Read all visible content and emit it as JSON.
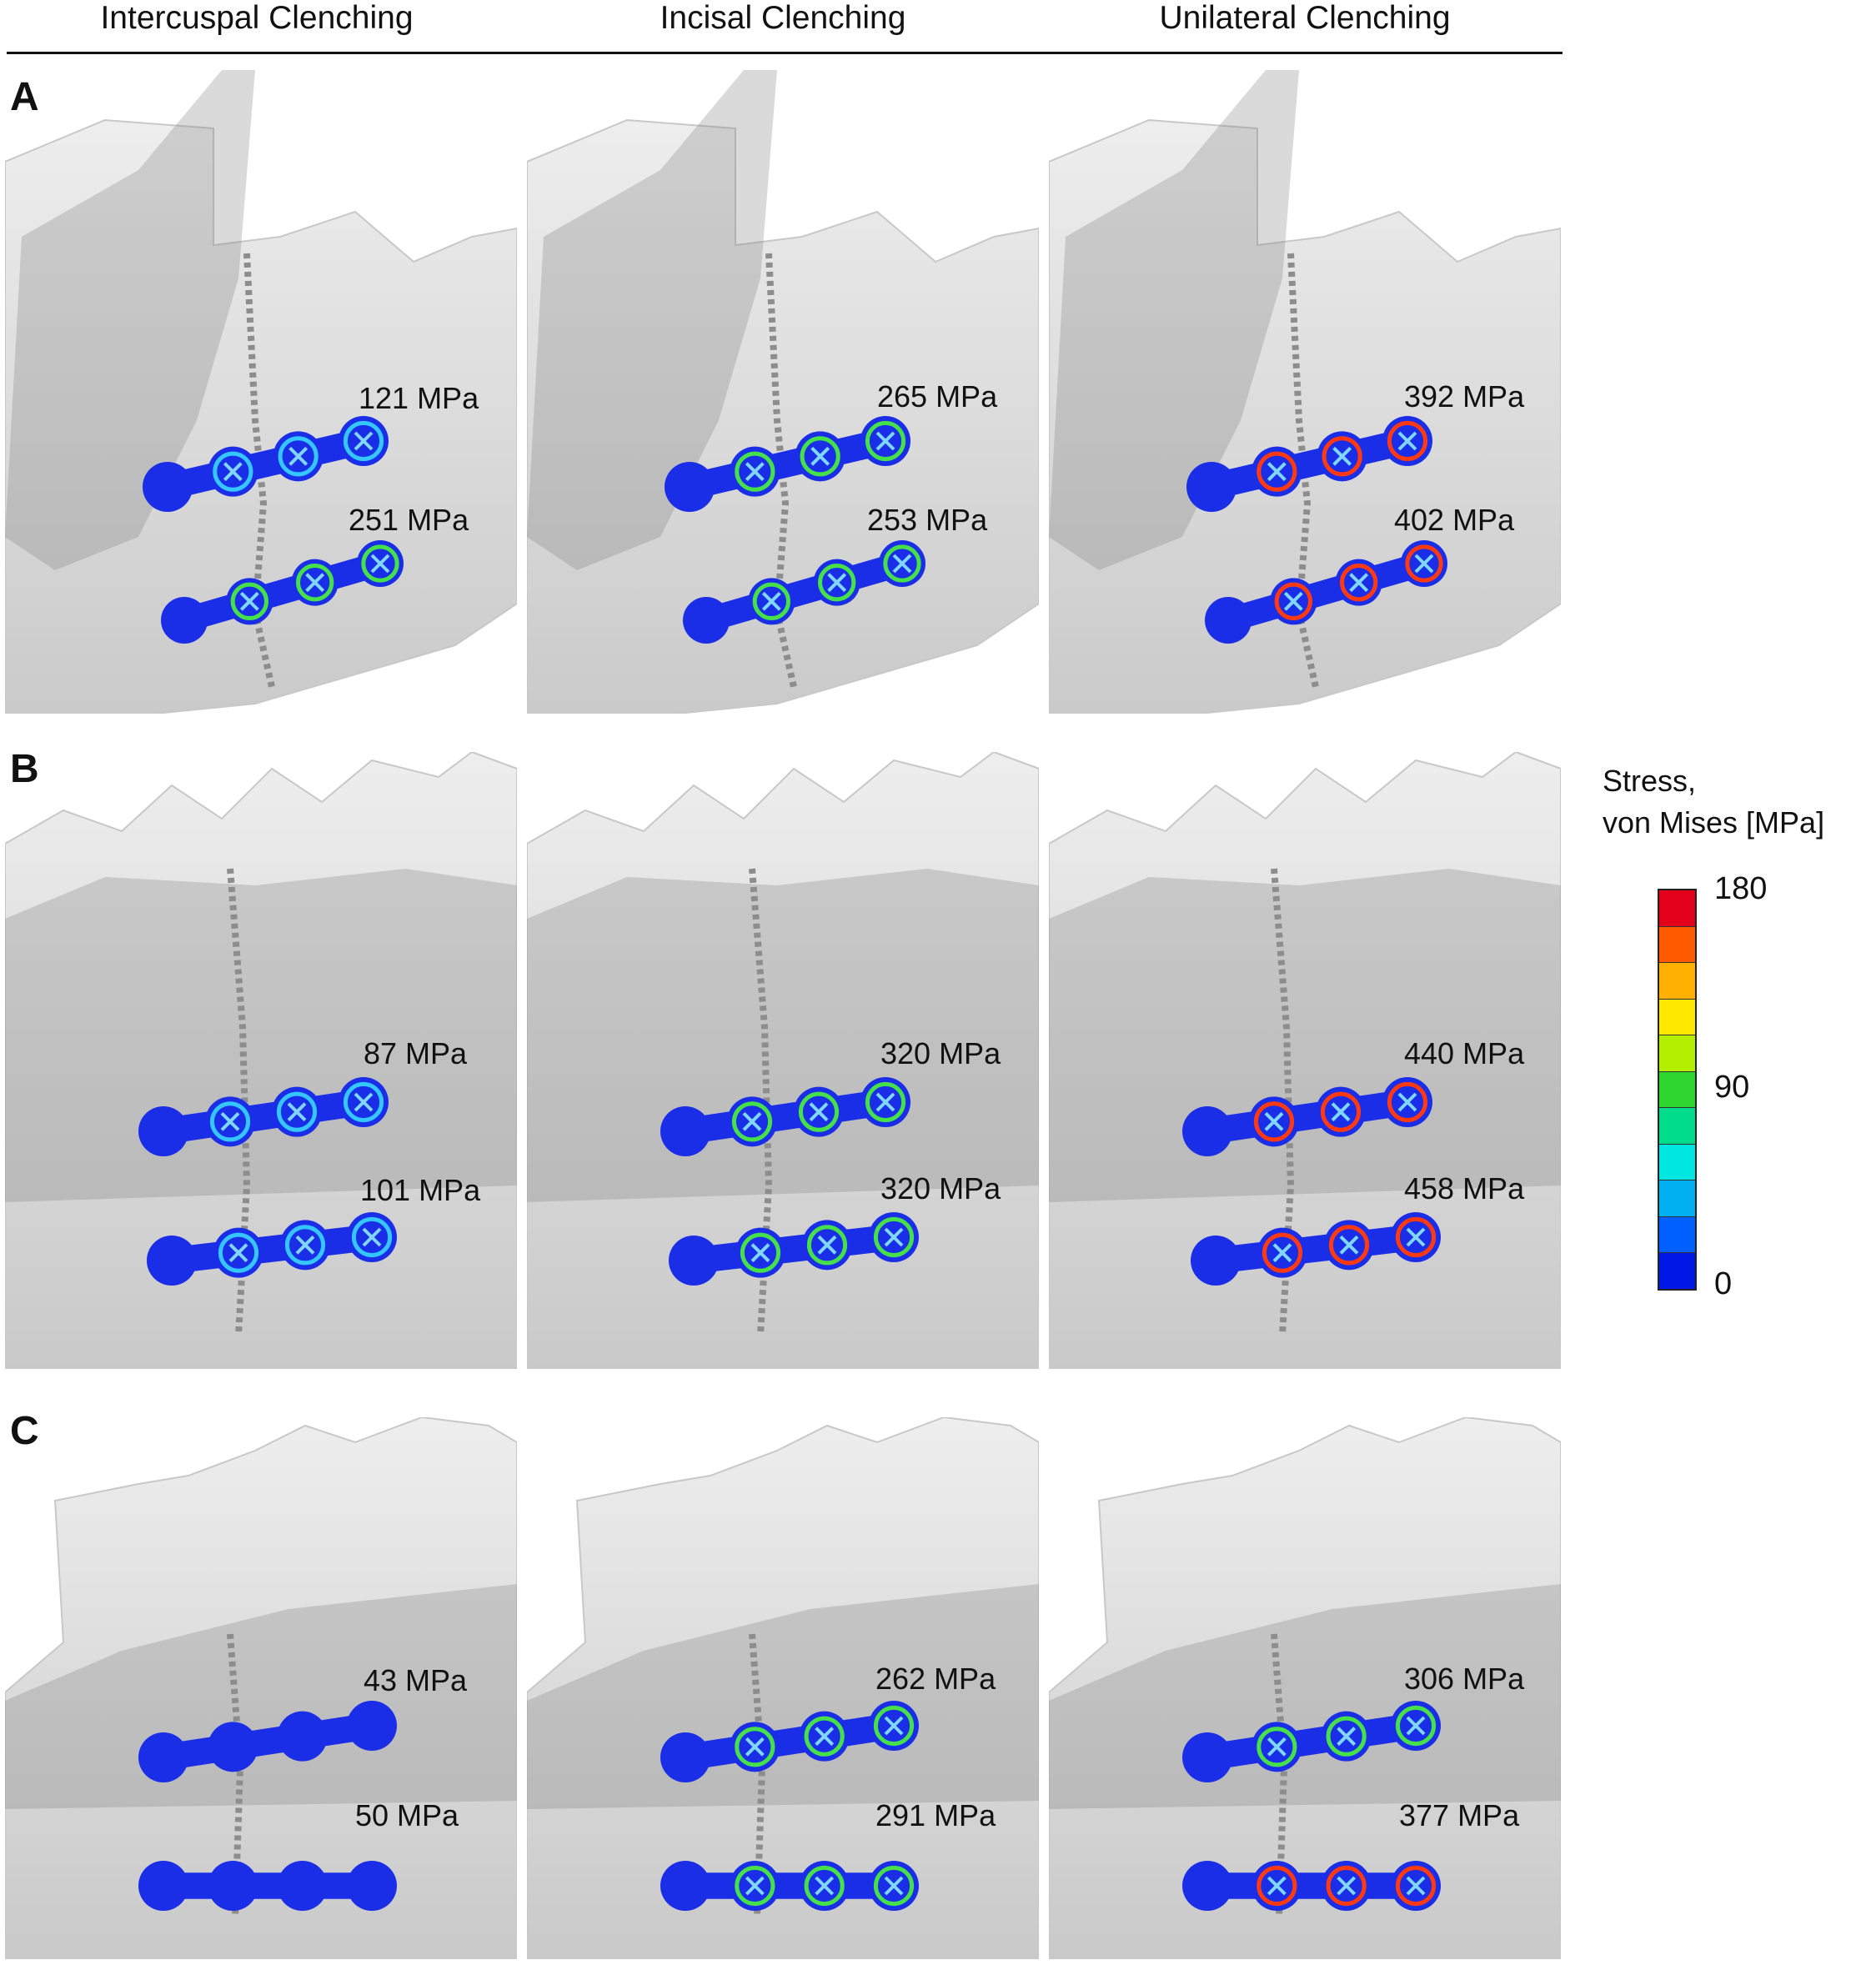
{
  "columns": [
    "Intercuspal Clenching",
    "Incisal Clenching",
    "Unilateral Clenching"
  ],
  "rows": [
    {
      "letter": "A",
      "panels": [
        {
          "upper": "121 MPa",
          "lower": "251 MPa"
        },
        {
          "upper": "265 MPa",
          "lower": "253 MPa"
        },
        {
          "upper": "392 MPa",
          "lower": "402 MPa"
        }
      ]
    },
    {
      "letter": "B",
      "panels": [
        {
          "upper": "87 MPa",
          "lower": "101 MPa"
        },
        {
          "upper": "320 MPa",
          "lower": "320 MPa"
        },
        {
          "upper": "440 MPa",
          "lower": "458 MPa"
        }
      ]
    },
    {
      "letter": "C",
      "panels": [
        {
          "upper": "43 MPa",
          "lower": "50 MPa"
        },
        {
          "upper": "262 MPa",
          "lower": "291 MPa"
        },
        {
          "upper": "306 MPa",
          "lower": "377 MPa"
        }
      ]
    }
  ],
  "legend": {
    "title_line1": "Stress,",
    "title_line2": "von Mises [MPa]",
    "max": "180",
    "mid": "90",
    "min": "0",
    "colors": [
      "#e3001b",
      "#ff5a00",
      "#ffb000",
      "#ffe800",
      "#b4ee00",
      "#30d630",
      "#00dc8c",
      "#00e6e0",
      "#00b0f0",
      "#0060ff",
      "#0018e6"
    ]
  },
  "colors": {
    "plate_base": "#1a2ee8",
    "bone_light": "#e6e6e6",
    "bone_mid": "#bdbdbd"
  }
}
